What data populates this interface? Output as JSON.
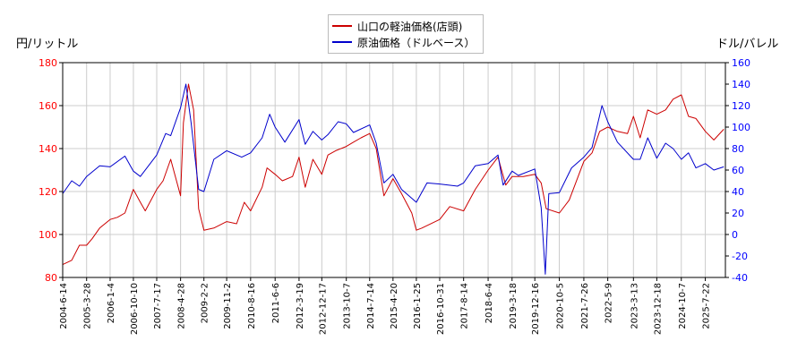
{
  "chart_data": {
    "type": "line",
    "left_axis": {
      "label": "円/リットル",
      "ylim": [
        80,
        180
      ],
      "ticks": [
        80,
        100,
        120,
        140,
        160,
        180
      ],
      "color": "#ff0000"
    },
    "right_axis": {
      "label": "ドル/バレル",
      "ylim": [
        -40,
        160
      ],
      "ticks": [
        -40,
        -20,
        0,
        20,
        40,
        60,
        80,
        100,
        120,
        140,
        160
      ],
      "color": "#0000ff"
    },
    "x_range": [
      "2004-06-14",
      "2026-03-20"
    ],
    "x_ticks": [
      "2004-6-14",
      "2005-3-28",
      "2006-1-4",
      "2006-10-10",
      "2007-7-17",
      "2008-4-28",
      "2009-2-2",
      "2009-11-2",
      "2010-8-16",
      "2011-6-6",
      "2012-3-19",
      "2012-12-17",
      "2013-10-7",
      "2014-7-14",
      "2015-4-20",
      "2016-1-25",
      "2016-10-31",
      "2017-8-14",
      "2018-6-4",
      "2019-3-18",
      "2019-12-16",
      "2020-10-5",
      "2021-7-26",
      "2022-5-9",
      "2023-3-13",
      "2023-12-18",
      "2024-10-7",
      "2025-7-22"
    ],
    "grid": true,
    "legend_position": "top-center",
    "series": [
      {
        "name": "山口の軽油価格(店頭)",
        "axis": "left",
        "color": "#cc0000",
        "points": [
          [
            "2004-06-14",
            86
          ],
          [
            "2004-10-01",
            88
          ],
          [
            "2005-01-01",
            95
          ],
          [
            "2005-03-28",
            95
          ],
          [
            "2005-06-01",
            98
          ],
          [
            "2005-09-01",
            103
          ],
          [
            "2006-01-04",
            107
          ],
          [
            "2006-04-01",
            108
          ],
          [
            "2006-07-01",
            110
          ],
          [
            "2006-10-10",
            121
          ],
          [
            "2007-01-01",
            115
          ],
          [
            "2007-03-01",
            111
          ],
          [
            "2007-07-17",
            121
          ],
          [
            "2007-10-01",
            125
          ],
          [
            "2008-01-01",
            135
          ],
          [
            "2008-04-28",
            118
          ],
          [
            "2008-06-01",
            152
          ],
          [
            "2008-08-01",
            170
          ],
          [
            "2008-10-01",
            158
          ],
          [
            "2008-12-01",
            112
          ],
          [
            "2009-02-02",
            102
          ],
          [
            "2009-06-01",
            103
          ],
          [
            "2009-11-02",
            106
          ],
          [
            "2010-03-01",
            105
          ],
          [
            "2010-06-01",
            115
          ],
          [
            "2010-08-16",
            111
          ],
          [
            "2011-01-01",
            122
          ],
          [
            "2011-03-01",
            131
          ],
          [
            "2011-06-06",
            128
          ],
          [
            "2011-09-01",
            125
          ],
          [
            "2012-01-01",
            127
          ],
          [
            "2012-03-19",
            136
          ],
          [
            "2012-06-01",
            122
          ],
          [
            "2012-09-01",
            135
          ],
          [
            "2012-12-17",
            128
          ],
          [
            "2013-03-01",
            137
          ],
          [
            "2013-06-01",
            139
          ],
          [
            "2013-10-07",
            141
          ],
          [
            "2014-01-01",
            143
          ],
          [
            "2014-04-01",
            145
          ],
          [
            "2014-07-14",
            147
          ],
          [
            "2014-10-01",
            140
          ],
          [
            "2015-01-01",
            118
          ],
          [
            "2015-04-20",
            126
          ],
          [
            "2015-08-01",
            119
          ],
          [
            "2015-12-01",
            110
          ],
          [
            "2016-01-25",
            102
          ],
          [
            "2016-04-01",
            103
          ],
          [
            "2016-10-31",
            107
          ],
          [
            "2017-03-01",
            113
          ],
          [
            "2017-08-14",
            111
          ],
          [
            "2018-01-01",
            121
          ],
          [
            "2018-06-04",
            130
          ],
          [
            "2018-10-01",
            136
          ],
          [
            "2019-01-01",
            123
          ],
          [
            "2019-03-18",
            127
          ],
          [
            "2019-08-01",
            127
          ],
          [
            "2019-12-16",
            128
          ],
          [
            "2020-03-01",
            124
          ],
          [
            "2020-05-01",
            112
          ],
          [
            "2020-10-05",
            110
          ],
          [
            "2021-02-01",
            116
          ],
          [
            "2021-07-26",
            134
          ],
          [
            "2021-11-01",
            138
          ],
          [
            "2022-02-01",
            148
          ],
          [
            "2022-05-09",
            150
          ],
          [
            "2022-09-01",
            148
          ],
          [
            "2023-01-01",
            147
          ],
          [
            "2023-03-13",
            155
          ],
          [
            "2023-06-01",
            145
          ],
          [
            "2023-09-01",
            158
          ],
          [
            "2023-12-18",
            156
          ],
          [
            "2024-04-01",
            158
          ],
          [
            "2024-07-01",
            163
          ],
          [
            "2024-10-07",
            165
          ],
          [
            "2025-01-01",
            155
          ],
          [
            "2025-04-01",
            154
          ],
          [
            "2025-07-22",
            148
          ],
          [
            "2025-11-01",
            144
          ],
          [
            "2026-03-01",
            149
          ]
        ]
      },
      {
        "name": "原油価格（ドルベース）",
        "axis": "right",
        "color": "#0000cc",
        "points": [
          [
            "2004-06-14",
            38
          ],
          [
            "2004-10-01",
            50
          ],
          [
            "2005-01-01",
            45
          ],
          [
            "2005-03-28",
            54
          ],
          [
            "2005-09-01",
            64
          ],
          [
            "2006-01-04",
            63
          ],
          [
            "2006-07-01",
            73
          ],
          [
            "2006-10-10",
            59
          ],
          [
            "2007-01-01",
            54
          ],
          [
            "2007-07-17",
            74
          ],
          [
            "2007-11-01",
            94
          ],
          [
            "2008-01-01",
            92
          ],
          [
            "2008-04-28",
            118
          ],
          [
            "2008-07-01",
            140
          ],
          [
            "2008-09-01",
            104
          ],
          [
            "2008-12-01",
            42
          ],
          [
            "2009-02-02",
            40
          ],
          [
            "2009-06-01",
            70
          ],
          [
            "2009-11-02",
            78
          ],
          [
            "2010-05-01",
            72
          ],
          [
            "2010-08-16",
            76
          ],
          [
            "2011-01-01",
            90
          ],
          [
            "2011-04-01",
            112
          ],
          [
            "2011-06-06",
            100
          ],
          [
            "2011-10-01",
            86
          ],
          [
            "2012-03-19",
            107
          ],
          [
            "2012-06-01",
            84
          ],
          [
            "2012-09-01",
            96
          ],
          [
            "2012-12-17",
            88
          ],
          [
            "2013-03-01",
            93
          ],
          [
            "2013-07-01",
            105
          ],
          [
            "2013-10-07",
            103
          ],
          [
            "2014-01-01",
            95
          ],
          [
            "2014-07-14",
            102
          ],
          [
            "2014-10-01",
            85
          ],
          [
            "2015-01-01",
            48
          ],
          [
            "2015-04-20",
            56
          ],
          [
            "2015-08-01",
            42
          ],
          [
            "2016-01-25",
            30
          ],
          [
            "2016-06-01",
            48
          ],
          [
            "2016-10-31",
            47
          ],
          [
            "2017-06-01",
            45
          ],
          [
            "2017-08-14",
            48
          ],
          [
            "2018-01-01",
            64
          ],
          [
            "2018-06-04",
            66
          ],
          [
            "2018-10-01",
            74
          ],
          [
            "2018-12-01",
            46
          ],
          [
            "2019-03-18",
            59
          ],
          [
            "2019-06-01",
            55
          ],
          [
            "2019-12-16",
            61
          ],
          [
            "2020-03-01",
            25
          ],
          [
            "2020-04-20",
            -37
          ],
          [
            "2020-06-01",
            38
          ],
          [
            "2020-10-05",
            39
          ],
          [
            "2021-03-01",
            62
          ],
          [
            "2021-07-26",
            72
          ],
          [
            "2021-11-01",
            81
          ],
          [
            "2022-03-01",
            120
          ],
          [
            "2022-05-09",
            105
          ],
          [
            "2022-09-01",
            86
          ],
          [
            "2023-03-13",
            70
          ],
          [
            "2023-06-01",
            70
          ],
          [
            "2023-09-01",
            90
          ],
          [
            "2023-12-18",
            71
          ],
          [
            "2024-04-01",
            85
          ],
          [
            "2024-07-01",
            80
          ],
          [
            "2024-10-07",
            70
          ],
          [
            "2025-01-01",
            76
          ],
          [
            "2025-04-01",
            62
          ],
          [
            "2025-07-22",
            66
          ],
          [
            "2025-11-01",
            60
          ],
          [
            "2026-03-01",
            63
          ]
        ]
      }
    ]
  }
}
